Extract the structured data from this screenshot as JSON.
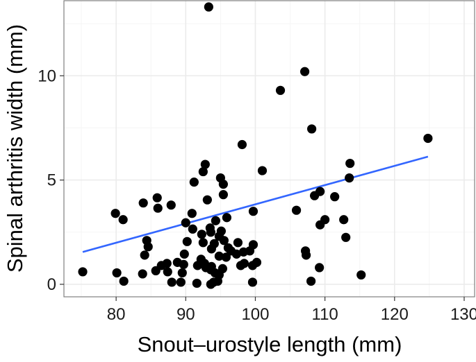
{
  "chart_data": {
    "type": "scatter",
    "title": "",
    "xlabel": "Snout–urostyle length (mm)",
    "ylabel": "Spinal arthritis width (mm)",
    "xlim": [
      72.5,
      131.5
    ],
    "ylim": [
      -0.6,
      13.6
    ],
    "x_ticks": [
      80,
      90,
      100,
      110,
      120,
      130
    ],
    "x_tick_labels": [
      "80",
      "90",
      "100",
      "110",
      "120",
      "130"
    ],
    "y_ticks": [
      0,
      5,
      10
    ],
    "y_tick_labels": [
      "0",
      "5",
      "10"
    ],
    "grid": true,
    "legend": "none",
    "colors": {
      "panel_background": "#ffffff",
      "panel_border": "#7f7f7f",
      "grid_major": "#ebebeb",
      "grid_minor": "#f5f5f5",
      "points": "#000000",
      "trend_line": "#3366ff"
    },
    "trend_line": {
      "x": [
        75.2,
        124.8
      ],
      "y": [
        1.55,
        6.12
      ]
    },
    "series": [
      {
        "points": [
          [
            93.3,
            13.3
          ],
          [
            107.1,
            10.2
          ],
          [
            103.6,
            9.3
          ],
          [
            108.1,
            7.45
          ],
          [
            124.8,
            7.0
          ],
          [
            98.1,
            6.7
          ],
          [
            92.8,
            5.75
          ],
          [
            113.6,
            5.8
          ],
          [
            101.0,
            5.45
          ],
          [
            92.5,
            5.4
          ],
          [
            95.0,
            5.1
          ],
          [
            113.5,
            5.1
          ],
          [
            91.2,
            4.9
          ],
          [
            95.4,
            4.8
          ],
          [
            109.3,
            4.45
          ],
          [
            108.5,
            4.25
          ],
          [
            111.4,
            4.2
          ],
          [
            95.4,
            4.3
          ],
          [
            85.9,
            4.15
          ],
          [
            93.1,
            4.05
          ],
          [
            83.9,
            3.9
          ],
          [
            87.9,
            3.8
          ],
          [
            86.0,
            3.65
          ],
          [
            105.9,
            3.55
          ],
          [
            79.9,
            3.4
          ],
          [
            90.9,
            3.4
          ],
          [
            99.7,
            3.5
          ],
          [
            81.0,
            3.1
          ],
          [
            95.9,
            3.2
          ],
          [
            110.0,
            3.1
          ],
          [
            112.7,
            3.1
          ],
          [
            94.3,
            3.05
          ],
          [
            90.0,
            2.95
          ],
          [
            109.3,
            2.85
          ],
          [
            93.5,
            2.7
          ],
          [
            91.0,
            2.65
          ],
          [
            93.6,
            2.5
          ],
          [
            95.1,
            2.55
          ],
          [
            92.3,
            2.4
          ],
          [
            94.8,
            2.3
          ],
          [
            113.0,
            2.25
          ],
          [
            84.4,
            2.1
          ],
          [
            90.2,
            2.05
          ],
          [
            95.5,
            2.1
          ],
          [
            92.5,
            2.0
          ],
          [
            97.5,
            2.0
          ],
          [
            99.7,
            1.9
          ],
          [
            94.1,
            1.95
          ],
          [
            84.6,
            1.8
          ],
          [
            93.7,
            1.7
          ],
          [
            96.1,
            1.75
          ],
          [
            96.5,
            1.6
          ],
          [
            107.2,
            1.6
          ],
          [
            98.3,
            1.55
          ],
          [
            99.2,
            1.6
          ],
          [
            97.3,
            1.45
          ],
          [
            84.1,
            1.4
          ],
          [
            89.8,
            1.45
          ],
          [
            107.3,
            1.4
          ],
          [
            94.8,
            1.35
          ],
          [
            95.8,
            1.3
          ],
          [
            92.2,
            1.2
          ],
          [
            87.3,
            1.0
          ],
          [
            88.8,
            1.05
          ],
          [
            92.7,
            1.0
          ],
          [
            98.4,
            1.0
          ],
          [
            100.2,
            1.05
          ],
          [
            89.7,
            0.95
          ],
          [
            86.5,
            0.9
          ],
          [
            91.7,
            0.9
          ],
          [
            93.7,
            0.85
          ],
          [
            92.9,
            0.8
          ],
          [
            95.3,
            0.75
          ],
          [
            109.2,
            0.8
          ],
          [
            97.9,
            0.9
          ],
          [
            99.6,
            0.9
          ],
          [
            75.2,
            0.6
          ],
          [
            80.1,
            0.55
          ],
          [
            83.8,
            0.5
          ],
          [
            85.7,
            0.65
          ],
          [
            87.4,
            0.6
          ],
          [
            89.5,
            0.55
          ],
          [
            93.6,
            0.7
          ],
          [
            94.2,
            0.55
          ],
          [
            94.8,
            0.45
          ],
          [
            115.2,
            0.45
          ],
          [
            81.1,
            0.15
          ],
          [
            88.0,
            0.1
          ],
          [
            89.3,
            0.1
          ],
          [
            91.6,
            0.05
          ],
          [
            94.0,
            0.1
          ],
          [
            94.6,
            0.15
          ],
          [
            99.6,
            0.1
          ],
          [
            108.0,
            0.15
          ],
          [
            93.6,
            0.0
          ]
        ]
      }
    ]
  }
}
